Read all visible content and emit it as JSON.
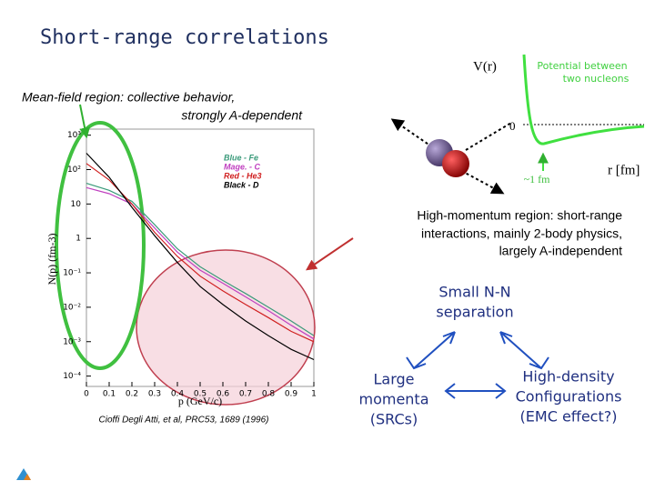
{
  "title": "Short-range correlations",
  "mean_field_note": [
    "Mean-field region: collective behavior,",
    "strongly A-dependent"
  ],
  "high_momentum_note": [
    "High-momentum region: short-range",
    "interactions, mainly 2-body physics,",
    "largely A-independent"
  ],
  "triangle": {
    "top": [
      "Small N-N",
      "separation"
    ],
    "left": [
      "Large",
      "momenta",
      "(SRCs)"
    ],
    "right": [
      "High-density",
      "Configurations",
      "(EMC effect?)"
    ]
  },
  "citation": "Cioffi Degli Atti, et al, PRC53, 1689 (1996)",
  "potential_inset": {
    "y_label": "V(r)",
    "legend": [
      "Potential between",
      "two nucleons"
    ],
    "zero_label": "0",
    "range_label": "~1 fm",
    "x_label": "r [fm]"
  },
  "chart_data": {
    "type": "line",
    "x_label": "p (GeV/c)",
    "y_label": "N(p) (fm-3)",
    "log_y": true,
    "x": [
      0,
      0.1,
      0.2,
      0.3,
      0.4,
      0.5,
      0.6,
      0.7,
      0.8,
      0.9,
      1
    ],
    "series": [
      {
        "name": "Blue - Fe",
        "color": "#3a9a7a",
        "values": [
          40,
          25,
          12,
          2.5,
          0.5,
          0.15,
          0.06,
          0.025,
          0.01,
          0.004,
          0.0015
        ]
      },
      {
        "name": "Mage. - C",
        "color": "#c040c0",
        "values": [
          30,
          20,
          10,
          2,
          0.4,
          0.12,
          0.05,
          0.02,
          0.008,
          0.003,
          0.0012
        ]
      },
      {
        "name": "Red - He3",
        "color": "#d02020",
        "values": [
          150,
          50,
          10,
          1.5,
          0.3,
          0.08,
          0.03,
          0.012,
          0.005,
          0.002,
          0.001
        ]
      },
      {
        "name": "Black - D",
        "color": "#000000",
        "values": [
          300,
          60,
          8,
          1.2,
          0.2,
          0.04,
          0.012,
          0.004,
          0.0015,
          0.0006,
          0.0003
        ]
      }
    ],
    "xlim": [
      0,
      1
    ],
    "xticks": [
      0,
      0.1,
      0.2,
      0.3,
      0.4,
      0.5,
      0.6,
      0.7,
      0.8,
      0.9,
      1
    ],
    "ylim": [
      5e-05,
      1500
    ],
    "yticks": [
      {
        "value": 0.0001,
        "label": "10⁻⁴"
      },
      {
        "value": 0.001,
        "label": "10⁻³"
      },
      {
        "value": 0.01,
        "label": "10⁻²"
      },
      {
        "value": 0.1,
        "label": "10⁻¹"
      },
      {
        "value": 1,
        "label": "1"
      },
      {
        "value": 10,
        "label": "10"
      },
      {
        "value": 100,
        "label": "10²"
      },
      {
        "value": 1000,
        "label": "10³"
      }
    ]
  }
}
